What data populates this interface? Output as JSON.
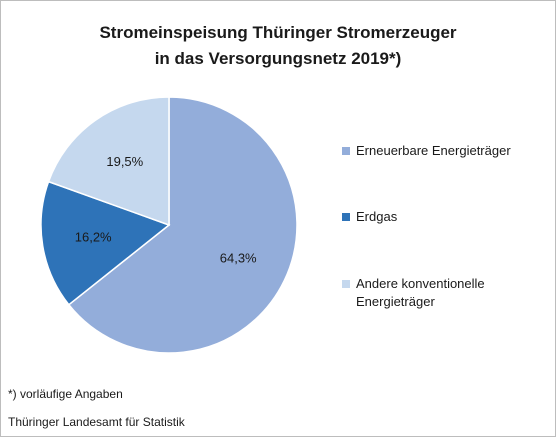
{
  "chart_data": {
    "type": "pie",
    "title_lines": [
      "Stromeinspeisung Thüringer Stromerzeuger",
      "in das Versorgungsnetz 2019*)"
    ],
    "categories": [
      "Erneuerbare Energieträger",
      "Erdgas",
      "Andere konventionelle Energieträger"
    ],
    "legend_lines": [
      [
        "Erneuerbare Energieträger"
      ],
      [
        "Erdgas"
      ],
      [
        "Andere konventionelle",
        "Energieträger"
      ]
    ],
    "values": [
      64.3,
      16.2,
      19.5
    ],
    "value_labels": [
      "64,3%",
      "16,2%",
      "19,5%"
    ],
    "unit": "%",
    "colors": [
      "#93ADDA",
      "#2E73B8",
      "#C5D8EE"
    ],
    "legend_position": "right"
  },
  "footnotes": {
    "note": "*) vorläufige Angaben",
    "source": "Thüringer Landesamt für Statistik"
  }
}
